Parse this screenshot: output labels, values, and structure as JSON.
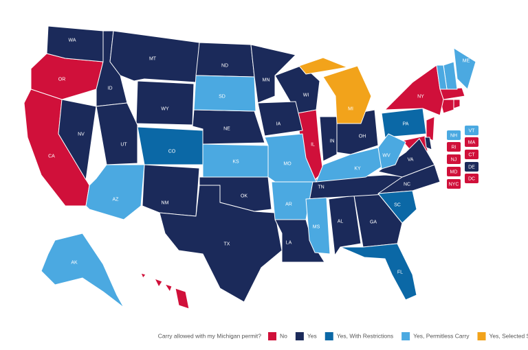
{
  "legend": {
    "title": "Carry allowed with my Michigan permit?",
    "items": [
      {
        "label": "No",
        "color": "#d0103a",
        "states": [
          "OR",
          "CA",
          "IL",
          "NY",
          "HI",
          "MA",
          "RI",
          "CT",
          "NJ",
          "MD",
          "NYC",
          "DC"
        ]
      },
      {
        "label": "Yes",
        "color": "#1b2a5a",
        "states": [
          "WA",
          "ID",
          "MT",
          "ND",
          "MN",
          "WI",
          "WY",
          "NE",
          "IA",
          "IN",
          "OH",
          "NV",
          "UT",
          "NM",
          "OK",
          "TX",
          "LA",
          "AL",
          "GA",
          "TN",
          "NC",
          "VA",
          "DE"
        ]
      },
      {
        "label": "Yes, With Restrictions",
        "color": "#0b68a6",
        "states": [
          "CO",
          "PA",
          "SC",
          "FL"
        ]
      },
      {
        "label": "Yes, Permitless Carry",
        "color": "#4ba9e1",
        "states": [
          "SD",
          "KS",
          "MO",
          "KY",
          "WV",
          "AZ",
          "AR",
          "MS",
          "AK",
          "ME",
          "NH",
          "VT"
        ]
      },
      {
        "label": "Yes, Selected State",
        "color": "#f2a31b",
        "states": [
          "MI"
        ]
      }
    ]
  }
}
